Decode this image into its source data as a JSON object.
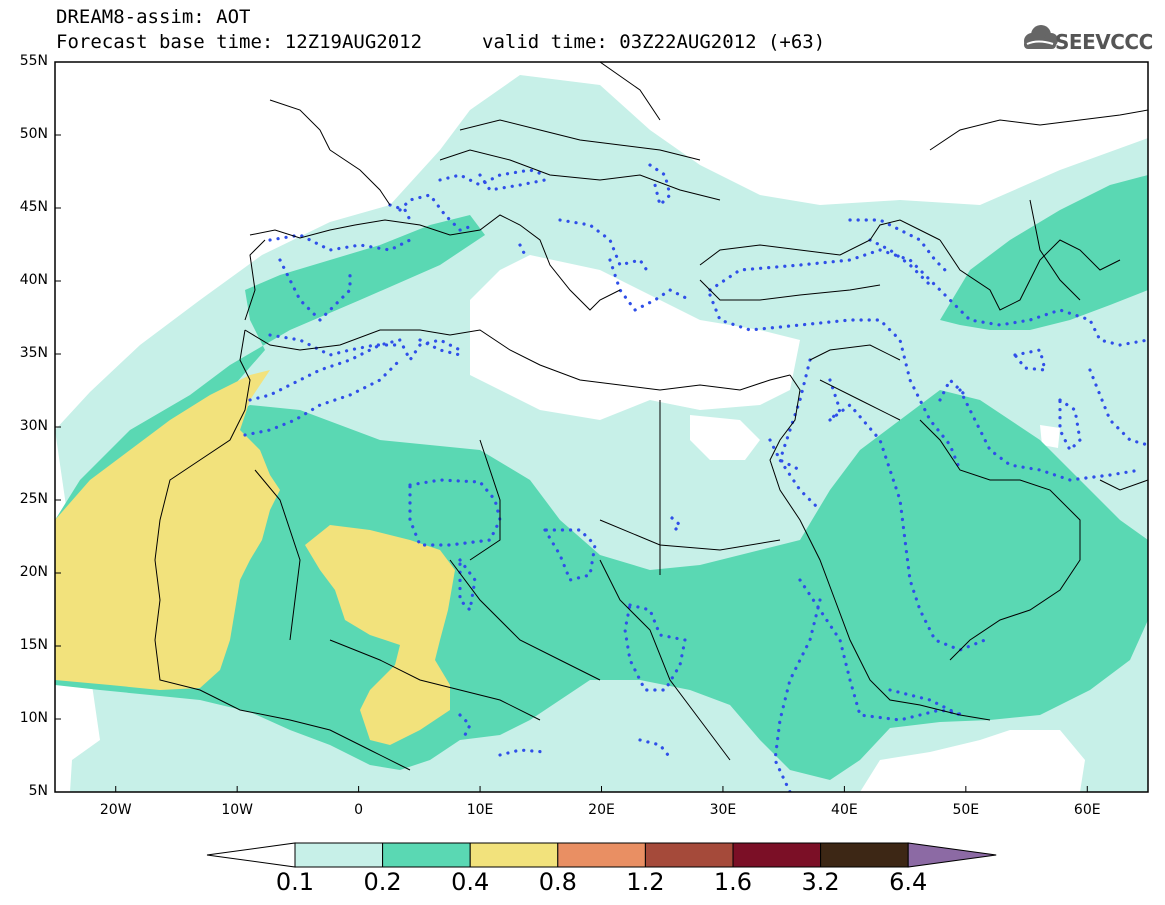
{
  "header": {
    "line1": "DREAM8-assim: AOT",
    "base_time": "Forecast base time: 12Z19AUG2012",
    "valid_time": "valid time: 03Z22AUG2012 (+63)",
    "logo_text": "SEEVCCC",
    "logo_icon": "cloud-icon"
  },
  "map": {
    "projection": "lat-lon",
    "lon_range": [
      -25,
      65
    ],
    "lat_range": [
      5,
      55
    ],
    "lat_ticks": [
      "55N",
      "50N",
      "45N",
      "40N",
      "35N",
      "30N",
      "25N",
      "20N",
      "15N",
      "10N",
      "5N"
    ],
    "lon_ticks": [
      "20W",
      "10W",
      "0",
      "10E",
      "20E",
      "30E",
      "40E",
      "50E",
      "60E"
    ],
    "colors": {
      "c01": "#c7f0e8",
      "c02": "#5ad8b3",
      "c04": "#f2e27c",
      "c08": "#e98f63",
      "c12": "#a54a3a",
      "c16": "#7b0f26",
      "c32": "#3d2715",
      "c64": "#8c6aa4",
      "dotted": "#2f4fe8"
    }
  },
  "colorbar": {
    "labels": [
      "0.1",
      "0.2",
      "0.4",
      "0.8",
      "1.2",
      "1.6",
      "3.2",
      "6.4"
    ],
    "colors": [
      "#c7f0e8",
      "#5ad8b3",
      "#f2e27c",
      "#e98f63",
      "#a54a3a",
      "#7b0f26",
      "#3d2715"
    ],
    "under_color": "#ffffff",
    "over_color": "#8c6aa4"
  }
}
